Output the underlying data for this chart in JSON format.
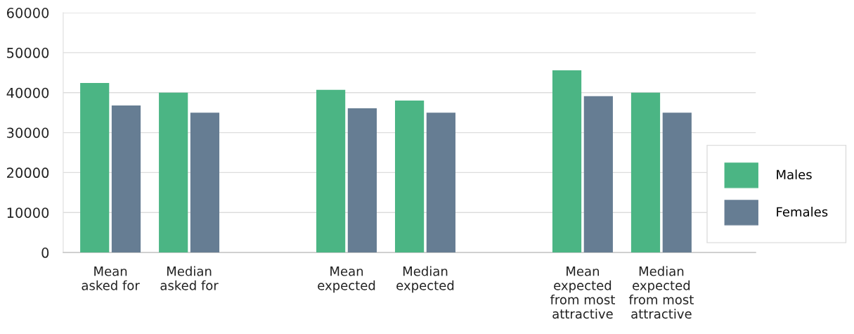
{
  "chart_data": {
    "type": "bar",
    "categories": [
      "Mean\nasked for",
      "Median\nasked for",
      null,
      "Mean\nexpected",
      "Median\nexpected",
      null,
      "Mean\nexpected\nfrom most\nattractive",
      "Median\nexpected\nfrom most\nattractive"
    ],
    "series": [
      {
        "name": "Males",
        "color": "#4bb584",
        "values": [
          42400,
          40000,
          null,
          40700,
          38000,
          null,
          45600,
          40000
        ]
      },
      {
        "name": "Females",
        "color": "#667d93",
        "values": [
          36800,
          35000,
          null,
          36100,
          35000,
          null,
          39100,
          35000
        ]
      }
    ],
    "ylim": [
      0,
      60000
    ],
    "yticks": [
      0,
      10000,
      20000,
      30000,
      40000,
      50000,
      60000
    ],
    "grid": "y",
    "legend": "right"
  }
}
